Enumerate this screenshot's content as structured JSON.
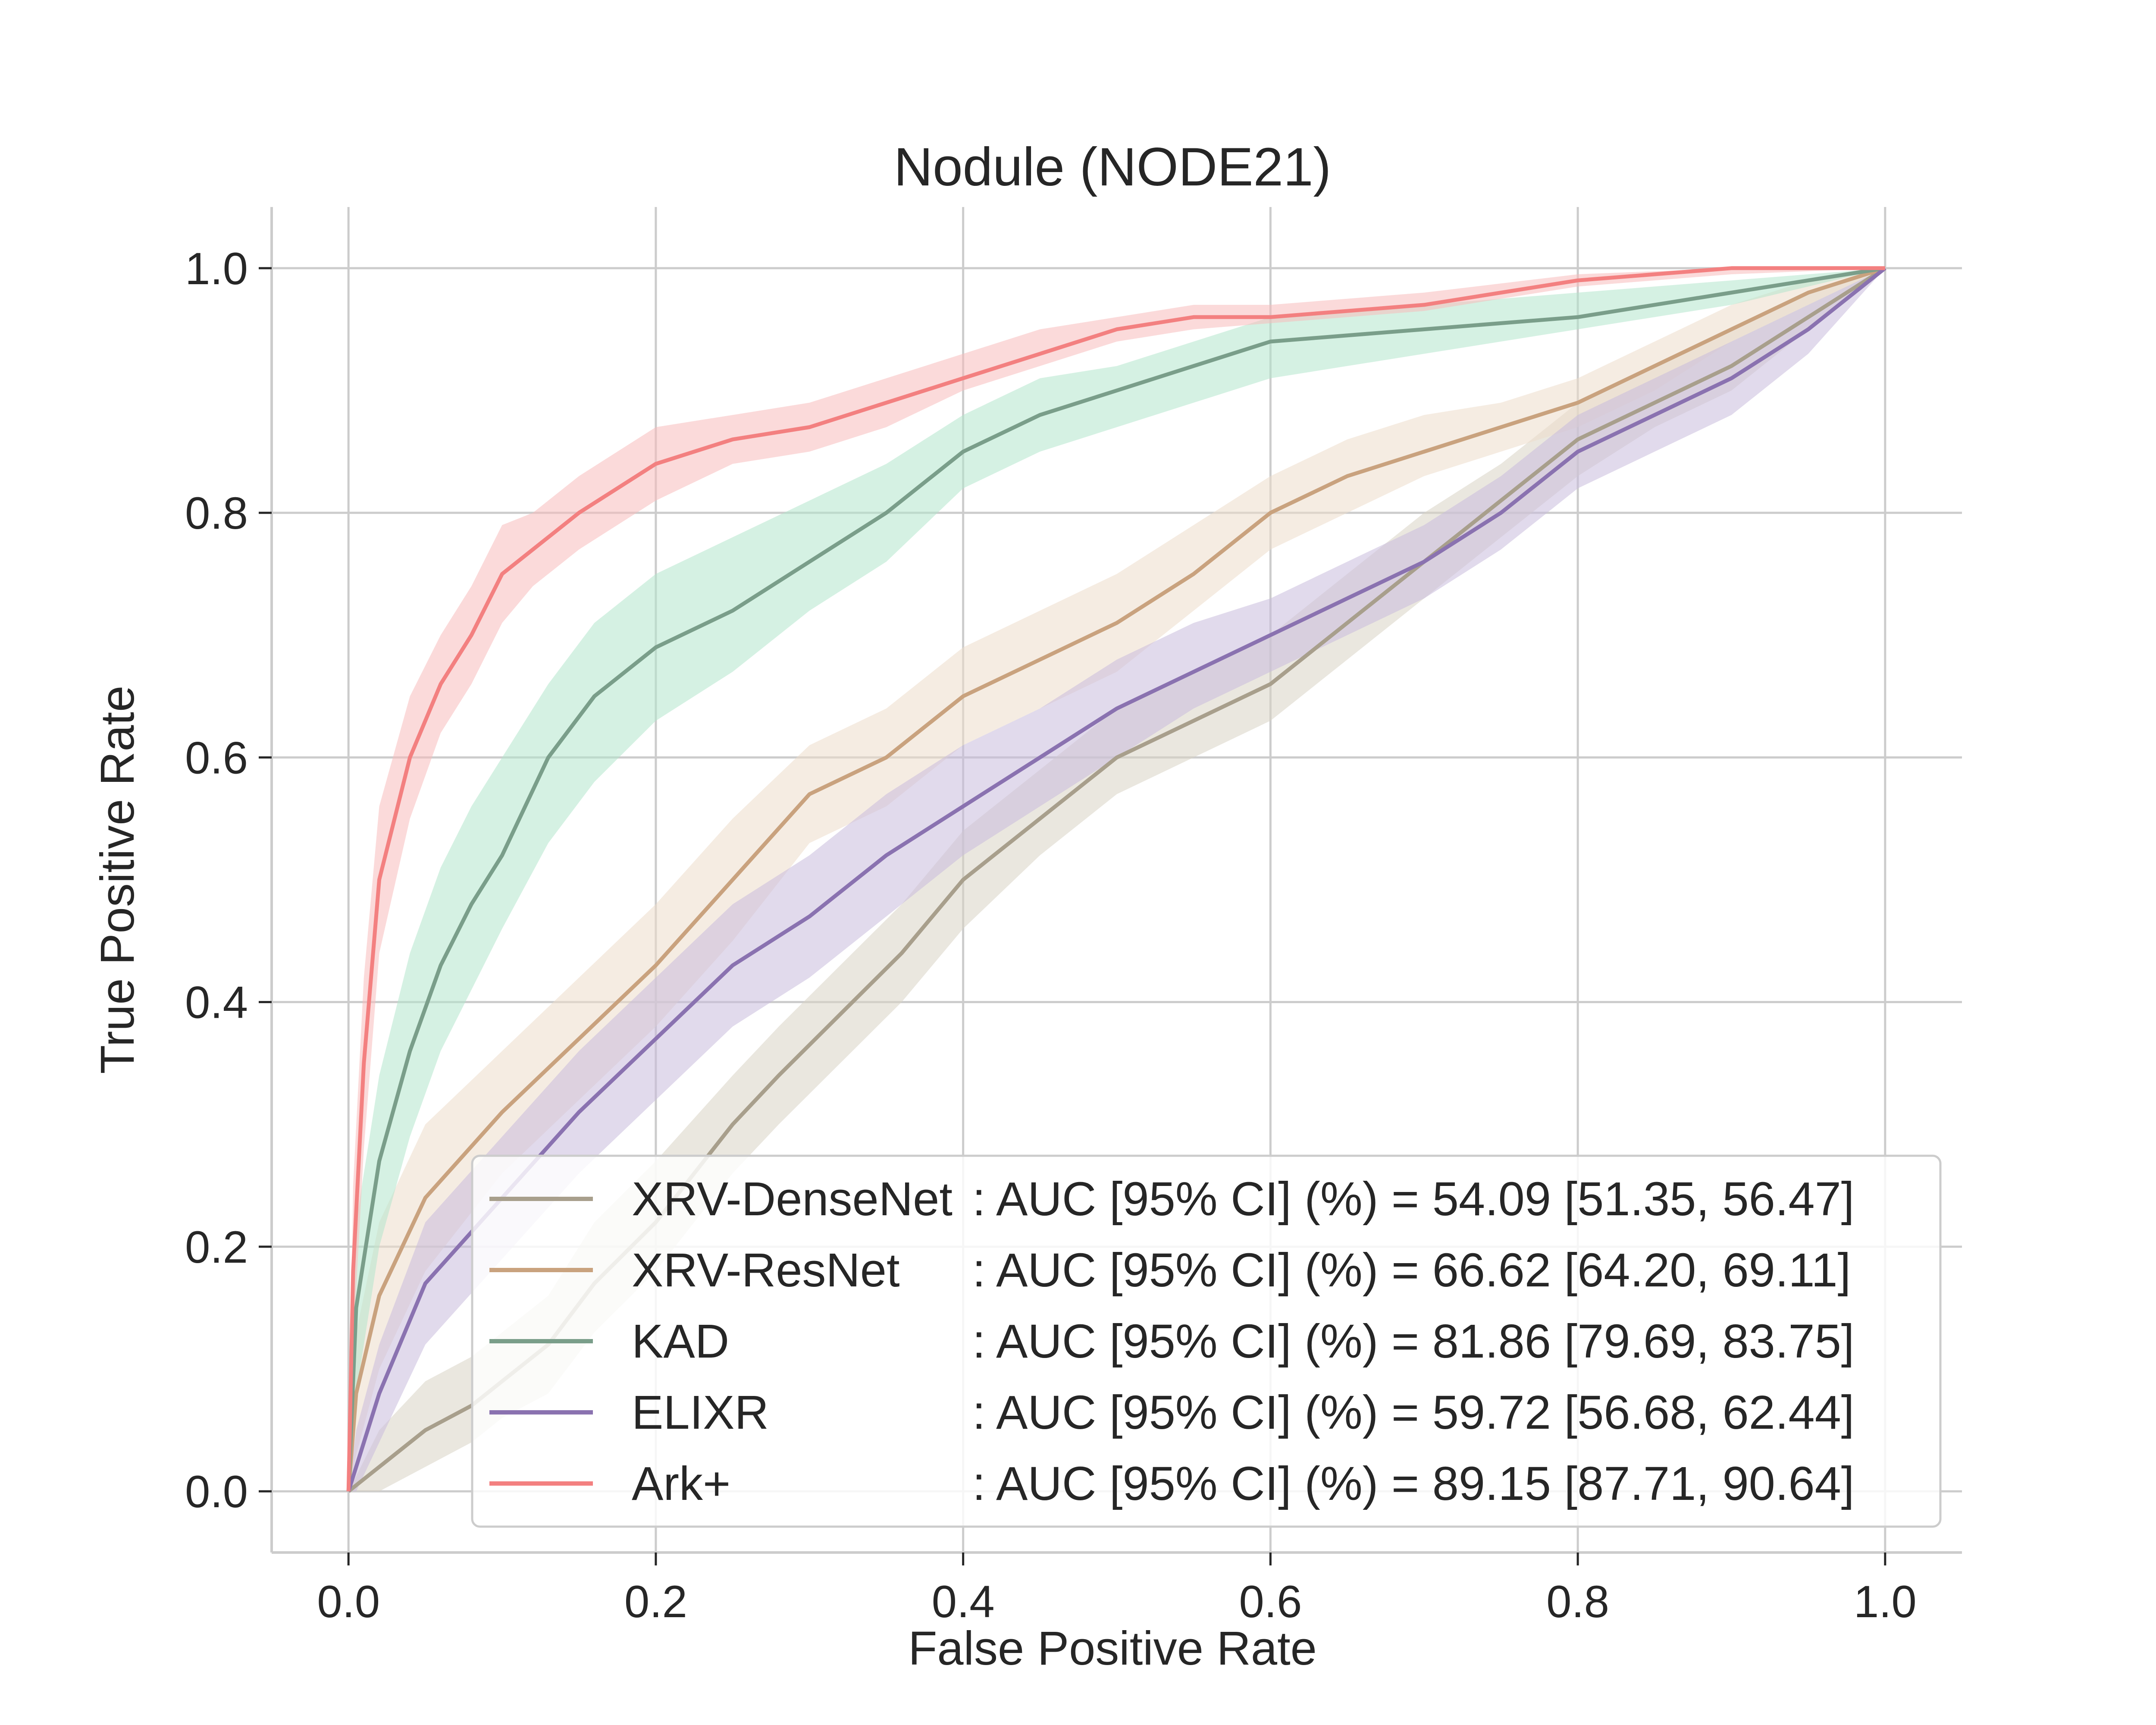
{
  "chart_data": {
    "type": "line",
    "title": "Nodule (NODE21)",
    "xlabel": "False Positive Rate",
    "ylabel": "True Positive Rate",
    "xlim": [
      -0.05,
      1.05
    ],
    "ylim": [
      -0.05,
      1.05
    ],
    "xticks": [
      0.0,
      0.2,
      0.4,
      0.6,
      0.8,
      1.0
    ],
    "yticks": [
      0.0,
      0.2,
      0.4,
      0.6,
      0.8,
      1.0
    ],
    "xtick_labels": [
      "0.0",
      "0.2",
      "0.4",
      "0.6",
      "0.8",
      "1.0"
    ],
    "ytick_labels": [
      "0.0",
      "0.2",
      "0.4",
      "0.6",
      "0.8",
      "1.0"
    ],
    "grid": true,
    "legend_position": "bottom-right",
    "series": [
      {
        "name": "XRV-DenseNet",
        "legend_text": ": AUC [95% CI] (%) = 54.09 [51.35, 56.47]",
        "color": "#a89f8c",
        "band_color": "#d9d4c4",
        "x": [
          0,
          0.02,
          0.05,
          0.08,
          0.1,
          0.13,
          0.16,
          0.2,
          0.25,
          0.28,
          0.32,
          0.36,
          0.4,
          0.45,
          0.5,
          0.55,
          0.6,
          0.65,
          0.7,
          0.75,
          0.8,
          0.85,
          0.9,
          0.95,
          1.0
        ],
        "y": [
          0,
          0.02,
          0.05,
          0.07,
          0.09,
          0.12,
          0.17,
          0.22,
          0.3,
          0.34,
          0.39,
          0.44,
          0.5,
          0.55,
          0.6,
          0.63,
          0.66,
          0.71,
          0.76,
          0.81,
          0.86,
          0.89,
          0.92,
          0.96,
          1.0
        ],
        "lower": [
          0,
          0.0,
          0.02,
          0.04,
          0.06,
          0.08,
          0.13,
          0.18,
          0.26,
          0.3,
          0.35,
          0.4,
          0.46,
          0.52,
          0.57,
          0.6,
          0.63,
          0.68,
          0.73,
          0.78,
          0.83,
          0.87,
          0.9,
          0.95,
          1.0
        ],
        "upper": [
          0,
          0.05,
          0.09,
          0.11,
          0.13,
          0.16,
          0.22,
          0.27,
          0.34,
          0.38,
          0.43,
          0.48,
          0.54,
          0.59,
          0.64,
          0.67,
          0.7,
          0.75,
          0.8,
          0.84,
          0.89,
          0.92,
          0.95,
          0.98,
          1.0
        ]
      },
      {
        "name": "XRV-ResNet",
        "legend_text": ": AUC [95% CI] (%) = 66.62 [64.20, 69.11]",
        "color": "#c9a27e",
        "band_color": "#ecdccb",
        "x": [
          0,
          0.005,
          0.02,
          0.05,
          0.1,
          0.15,
          0.2,
          0.25,
          0.3,
          0.35,
          0.4,
          0.45,
          0.5,
          0.55,
          0.6,
          0.65,
          0.7,
          0.75,
          0.8,
          0.85,
          0.9,
          0.95,
          1.0
        ],
        "y": [
          0,
          0.08,
          0.16,
          0.24,
          0.31,
          0.37,
          0.43,
          0.5,
          0.57,
          0.6,
          0.65,
          0.68,
          0.71,
          0.75,
          0.8,
          0.83,
          0.85,
          0.87,
          0.89,
          0.92,
          0.95,
          0.98,
          1.0
        ],
        "lower": [
          0,
          0.03,
          0.1,
          0.18,
          0.26,
          0.32,
          0.38,
          0.45,
          0.53,
          0.56,
          0.61,
          0.64,
          0.67,
          0.72,
          0.77,
          0.8,
          0.83,
          0.85,
          0.87,
          0.9,
          0.94,
          0.97,
          1.0
        ],
        "upper": [
          0,
          0.13,
          0.22,
          0.3,
          0.36,
          0.42,
          0.48,
          0.55,
          0.61,
          0.64,
          0.69,
          0.72,
          0.75,
          0.79,
          0.83,
          0.86,
          0.88,
          0.89,
          0.91,
          0.94,
          0.97,
          0.99,
          1.0
        ]
      },
      {
        "name": "KAD",
        "legend_text": ": AUC [95% CI] (%) = 81.86 [79.69, 83.75]",
        "color": "#7a9e8a",
        "band_color": "#b2e6cc",
        "x": [
          0,
          0.005,
          0.02,
          0.04,
          0.06,
          0.08,
          0.1,
          0.13,
          0.16,
          0.2,
          0.25,
          0.3,
          0.35,
          0.4,
          0.45,
          0.5,
          0.55,
          0.6,
          0.7,
          0.8,
          0.9,
          1.0
        ],
        "y": [
          0,
          0.15,
          0.27,
          0.36,
          0.43,
          0.48,
          0.52,
          0.6,
          0.65,
          0.69,
          0.72,
          0.76,
          0.8,
          0.85,
          0.88,
          0.9,
          0.92,
          0.94,
          0.95,
          0.96,
          0.98,
          1.0
        ],
        "lower": [
          0,
          0.08,
          0.2,
          0.29,
          0.36,
          0.41,
          0.46,
          0.53,
          0.58,
          0.63,
          0.67,
          0.72,
          0.76,
          0.82,
          0.85,
          0.87,
          0.89,
          0.91,
          0.93,
          0.95,
          0.97,
          1.0
        ],
        "upper": [
          0,
          0.22,
          0.34,
          0.44,
          0.51,
          0.56,
          0.6,
          0.66,
          0.71,
          0.75,
          0.78,
          0.81,
          0.84,
          0.88,
          0.91,
          0.92,
          0.94,
          0.96,
          0.97,
          0.98,
          0.99,
          1.0
        ]
      },
      {
        "name": "ELIXR",
        "legend_text": ": AUC [95% CI] (%) = 59.72 [56.68, 62.44]",
        "color": "#8a72b0",
        "band_color": "#c9bcdc",
        "x": [
          0,
          0.005,
          0.02,
          0.05,
          0.1,
          0.15,
          0.2,
          0.25,
          0.3,
          0.35,
          0.4,
          0.45,
          0.5,
          0.55,
          0.6,
          0.65,
          0.7,
          0.75,
          0.8,
          0.85,
          0.9,
          0.95,
          1.0
        ],
        "y": [
          0,
          0.02,
          0.08,
          0.17,
          0.24,
          0.31,
          0.37,
          0.43,
          0.47,
          0.52,
          0.56,
          0.6,
          0.64,
          0.67,
          0.7,
          0.73,
          0.76,
          0.8,
          0.85,
          0.88,
          0.91,
          0.95,
          1.0
        ],
        "lower": [
          0,
          0.0,
          0.04,
          0.12,
          0.19,
          0.26,
          0.32,
          0.38,
          0.42,
          0.47,
          0.52,
          0.56,
          0.6,
          0.64,
          0.67,
          0.7,
          0.73,
          0.77,
          0.82,
          0.85,
          0.88,
          0.93,
          1.0
        ],
        "upper": [
          0,
          0.05,
          0.12,
          0.22,
          0.29,
          0.36,
          0.42,
          0.48,
          0.52,
          0.57,
          0.61,
          0.64,
          0.68,
          0.71,
          0.73,
          0.76,
          0.79,
          0.83,
          0.88,
          0.91,
          0.94,
          0.97,
          1.0
        ]
      },
      {
        "name": "Ark+",
        "legend_text": ": AUC [95% CI] (%) = 89.15 [87.71, 90.64]",
        "color": "#f38080",
        "band_color": "#f7bcbc",
        "x": [
          0,
          0.003,
          0.01,
          0.02,
          0.04,
          0.06,
          0.08,
          0.1,
          0.12,
          0.15,
          0.2,
          0.25,
          0.3,
          0.35,
          0.4,
          0.45,
          0.5,
          0.55,
          0.6,
          0.7,
          0.8,
          0.9,
          1.0
        ],
        "y": [
          0,
          0.18,
          0.35,
          0.5,
          0.6,
          0.66,
          0.7,
          0.75,
          0.77,
          0.8,
          0.84,
          0.86,
          0.87,
          0.89,
          0.91,
          0.93,
          0.95,
          0.96,
          0.96,
          0.97,
          0.99,
          1.0,
          1.0
        ],
        "lower": [
          0,
          0.12,
          0.28,
          0.44,
          0.55,
          0.62,
          0.66,
          0.71,
          0.74,
          0.77,
          0.81,
          0.84,
          0.85,
          0.87,
          0.9,
          0.92,
          0.94,
          0.95,
          0.955,
          0.965,
          0.985,
          0.995,
          1.0
        ],
        "upper": [
          0,
          0.25,
          0.42,
          0.56,
          0.65,
          0.7,
          0.74,
          0.79,
          0.8,
          0.83,
          0.87,
          0.88,
          0.89,
          0.91,
          0.93,
          0.95,
          0.96,
          0.97,
          0.97,
          0.98,
          0.995,
          1.0,
          1.0
        ]
      }
    ]
  }
}
